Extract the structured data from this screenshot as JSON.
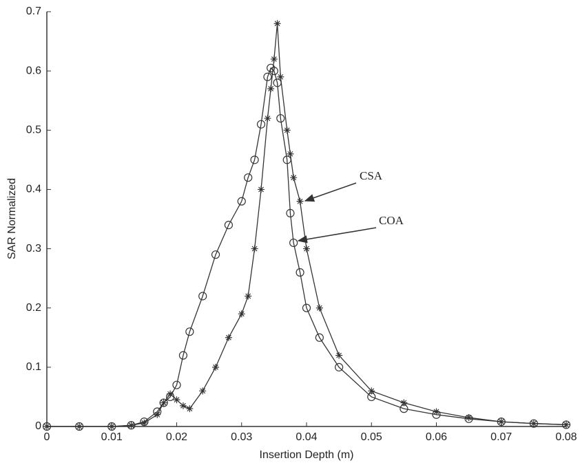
{
  "chart_data": {
    "type": "line",
    "xlabel": "Insertion Depth (m)",
    "ylabel": "SAR Normalized",
    "x": [
      0,
      0.005,
      0.01,
      0.013,
      0.015,
      0.017,
      0.018,
      0.019,
      0.02,
      0.021,
      0.022,
      0.024,
      0.026,
      0.028,
      0.03,
      0.031,
      0.032,
      0.033,
      0.034,
      0.0345,
      0.035,
      0.0355,
      0.036,
      0.037,
      0.0375,
      0.038,
      0.039,
      0.04,
      0.042,
      0.045,
      0.05,
      0.055,
      0.06,
      0.065,
      0.07,
      0.075,
      0.08
    ],
    "series": [
      {
        "name": "CSA",
        "color": "#333333",
        "marker": "*",
        "values": [
          0,
          0,
          0,
          0.002,
          0.006,
          0.02,
          0.04,
          0.055,
          0.045,
          0.035,
          0.03,
          0.06,
          0.1,
          0.15,
          0.19,
          0.22,
          0.3,
          0.4,
          0.52,
          0.57,
          0.62,
          0.68,
          0.59,
          0.5,
          0.46,
          0.42,
          0.38,
          0.3,
          0.2,
          0.12,
          0.06,
          0.04,
          0.025,
          0.015,
          0.008,
          0.005,
          0.003
        ]
      },
      {
        "name": "COA",
        "color": "#333333",
        "marker": "o",
        "values": [
          0,
          0,
          0,
          0.002,
          0.008,
          0.025,
          0.04,
          0.05,
          0.07,
          0.12,
          0.16,
          0.22,
          0.29,
          0.34,
          0.38,
          0.42,
          0.45,
          0.51,
          0.59,
          0.605,
          0.6,
          0.58,
          0.52,
          0.45,
          0.36,
          0.31,
          0.26,
          0.2,
          0.15,
          0.1,
          0.05,
          0.03,
          0.02,
          0.013,
          0.008,
          0.005,
          0.003
        ]
      }
    ],
    "annotations": [
      "CSA",
      "COA"
    ],
    "xlim": [
      0,
      0.08
    ],
    "xticks": [
      0,
      0.01,
      0.02,
      0.03,
      0.04,
      0.05,
      0.06,
      0.07,
      0.08
    ],
    "ylim": [
      0,
      0.7
    ],
    "yticks": [
      0,
      0.1,
      0.2,
      0.3,
      0.4,
      0.5,
      0.6,
      0.7
    ],
    "grid": false
  }
}
